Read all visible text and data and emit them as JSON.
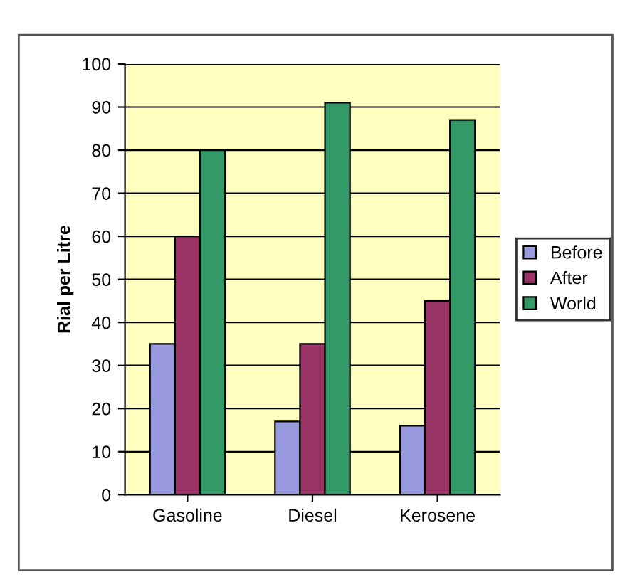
{
  "chart_data": {
    "type": "bar",
    "ylabel": "Rial per Litre",
    "categories": [
      "Gasoline",
      "Diesel",
      "Kerosene"
    ],
    "series": [
      {
        "name": "Before",
        "color": "#9999dd",
        "values": [
          35,
          17,
          16
        ]
      },
      {
        "name": "After",
        "color": "#993366",
        "values": [
          60,
          35,
          45
        ]
      },
      {
        "name": "World",
        "color": "#339966",
        "values": [
          80,
          91,
          87
        ]
      }
    ],
    "ylim": [
      0,
      100
    ],
    "yticks": [
      0,
      10,
      20,
      30,
      40,
      50,
      60,
      70,
      80,
      90,
      100
    ],
    "grid": "y",
    "legend": "right"
  }
}
